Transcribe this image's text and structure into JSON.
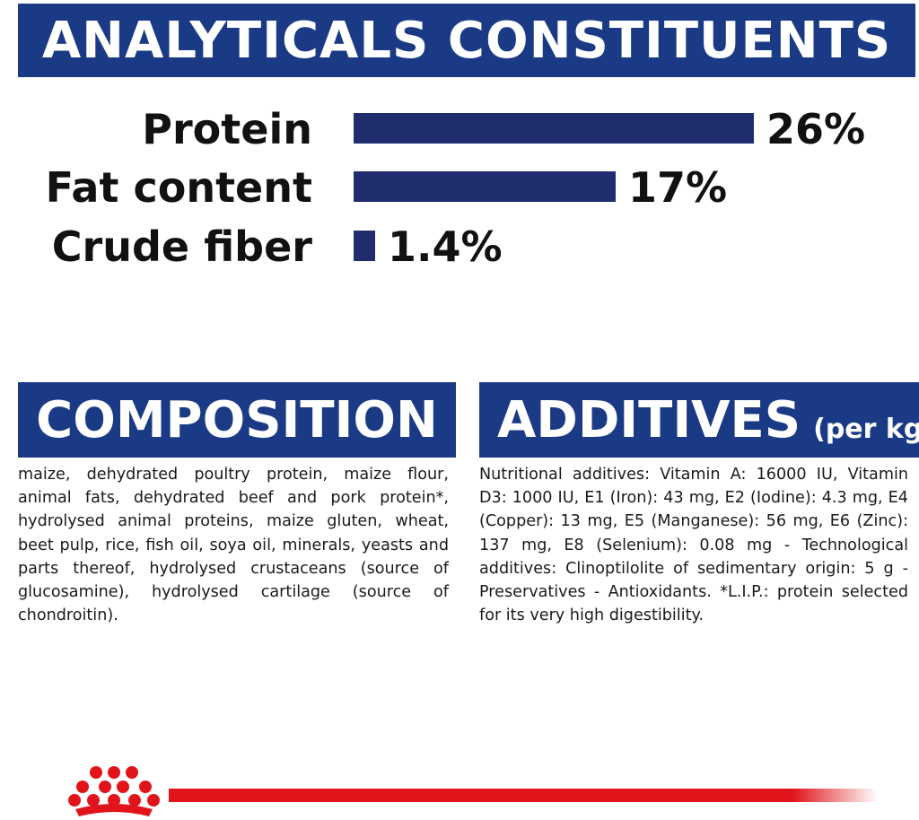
{
  "analytical": {
    "title": "ANALYTICALS CONSTITUENTS",
    "items": [
      {
        "label": "Protein",
        "value": "26%",
        "percent": 26
      },
      {
        "label": "Fat content",
        "value": "17%",
        "percent": 17
      },
      {
        "label": "Crude fiber",
        "value": "1.4%",
        "percent": 1.4
      }
    ]
  },
  "composition": {
    "title": "COMPOSITION",
    "text": "maize, dehydrated poultry protein, maize flour, animal fats, dehydrated beef and pork protein*, hydrolysed animal proteins, maize gluten, wheat, beet pulp, rice, fish oil, soya oil, minerals, yeasts and parts thereof, hydrolysed crustaceans (source of glucosamine), hydrolysed cartilage (source of chondroitin)."
  },
  "additives": {
    "title": "ADDITIVES",
    "unit": "(per kg)",
    "text": "Nutritional additives: Vitamin A: 16000 IU, Vitamin D3: 1000 IU, E1 (Iron): 43 mg, E2 (Iodine): 4.3 mg, E4 (Copper): 13 mg, E5 (Manganese): 56 mg, E6 (Zinc): 137 mg, E8 (Selenium): 0.08 mg - Technological additives: Clinoptilolite of sedimentary origin: 5 g - Preservatives - Antioxidants. *L.I.P.: protein selected for its very high digestibility."
  },
  "colors": {
    "banner_blue": "#1b3a85",
    "bar_navy": "#1f2d6f",
    "brand_red": "#e1141b"
  },
  "icons": {
    "logo": "crown-icon"
  }
}
